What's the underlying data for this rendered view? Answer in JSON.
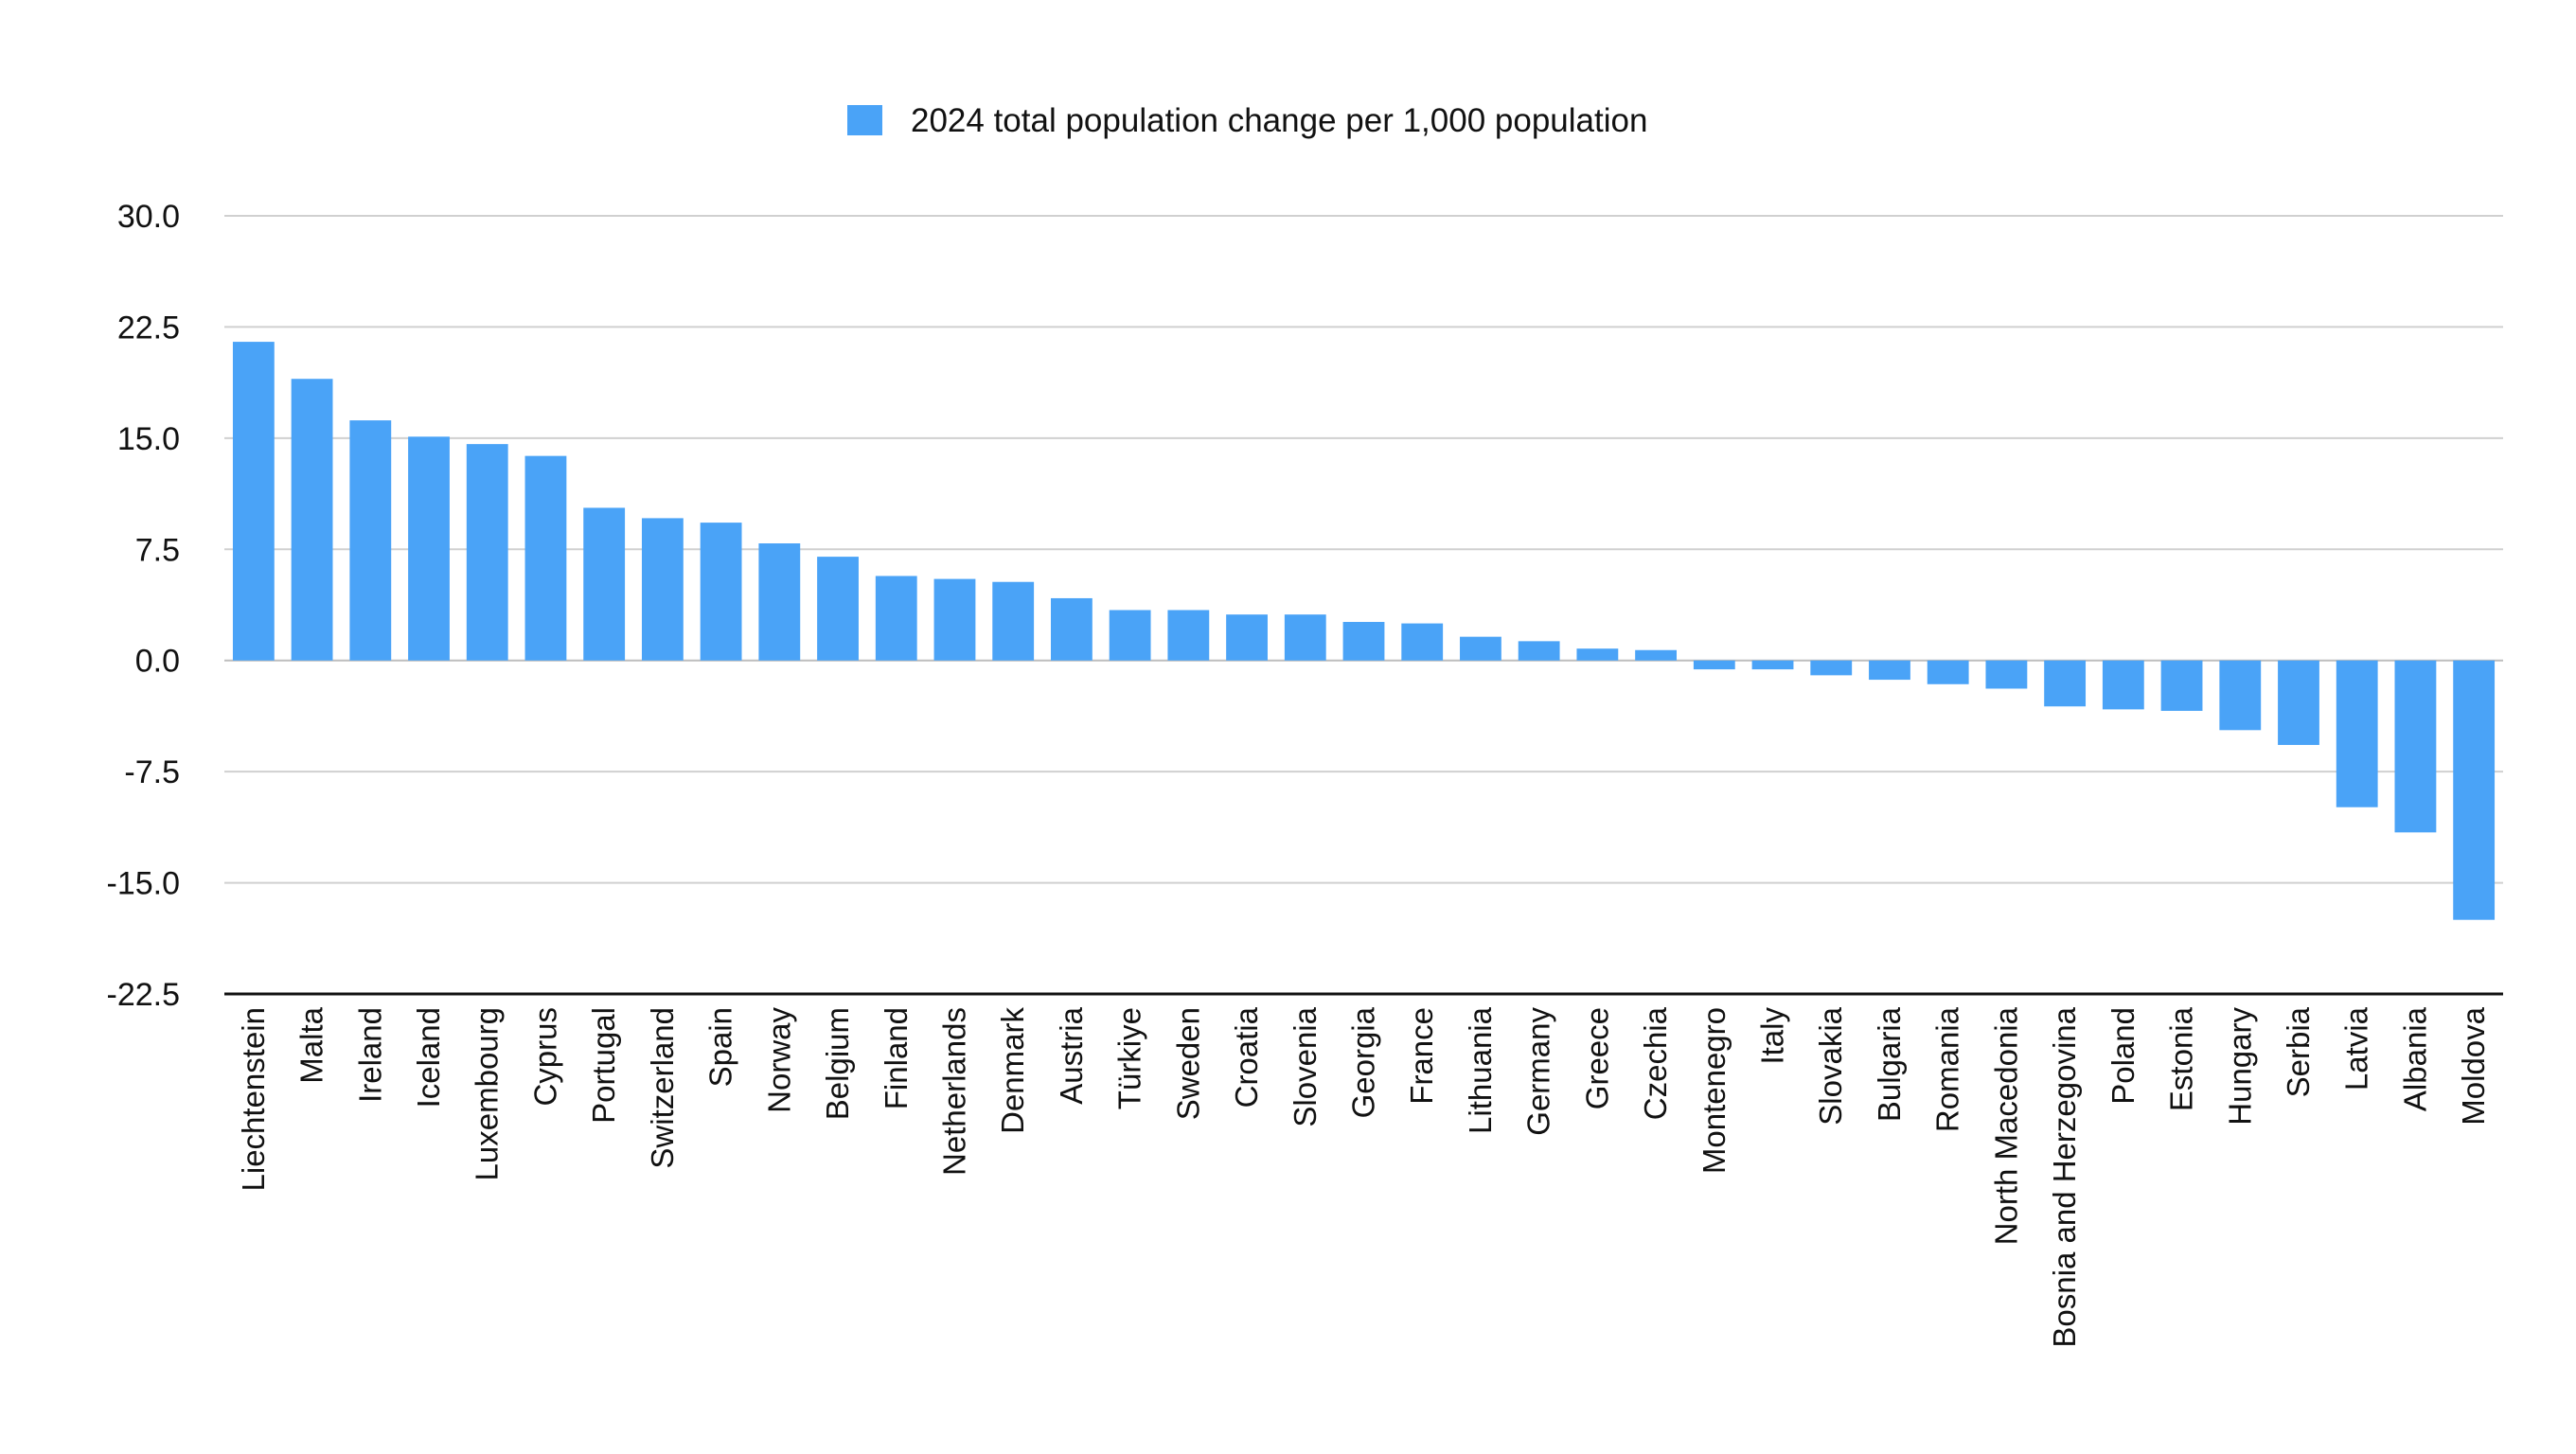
{
  "chart_data": {
    "type": "bar",
    "legend_position": "top-center",
    "grid": true,
    "series": [
      {
        "name": "2024 total population change per 1,000 population",
        "color": "#4aa3f7",
        "values": [
          21.5,
          19.0,
          16.2,
          15.1,
          14.6,
          13.8,
          10.3,
          9.6,
          9.3,
          7.9,
          7.0,
          5.7,
          5.5,
          5.3,
          4.2,
          3.4,
          3.4,
          3.1,
          3.1,
          2.6,
          2.5,
          1.6,
          1.3,
          0.8,
          0.7,
          -0.6,
          -0.6,
          -1.0,
          -1.3,
          -1.6,
          -1.9,
          -3.1,
          -3.3,
          -3.4,
          -4.7,
          -5.7,
          -9.9,
          -11.6,
          -17.5
        ]
      }
    ],
    "categories": [
      "Liechtenstein",
      "Malta",
      "Ireland",
      "Iceland",
      "Luxembourg",
      "Cyprus",
      "Portugal",
      "Switzerland",
      "Spain",
      "Norway",
      "Belgium",
      "Finland",
      "Netherlands",
      "Denmark",
      "Austria",
      "Türkiye",
      "Sweden",
      "Croatia",
      "Slovenia",
      "Georgia",
      "France",
      "Lithuania",
      "Germany",
      "Greece",
      "Czechia",
      "Montenegro",
      "Italy",
      "Slovakia",
      "Bulgaria",
      "Romania",
      "North Macedonia",
      "Bosnia and Herzegovina",
      "Poland",
      "Estonia",
      "Hungary",
      "Serbia",
      "Latvia",
      "Albania",
      "Moldova"
    ],
    "ylim": [
      -22.5,
      30.0
    ],
    "yticks": [
      "30.0",
      "22.5",
      "15.0",
      "7.5",
      "0.0",
      "-7.5",
      "-15.0",
      "-22.5"
    ],
    "ytick_values": [
      30,
      22.5,
      15,
      7.5,
      0,
      -7.5,
      -15,
      -22.5
    ]
  }
}
